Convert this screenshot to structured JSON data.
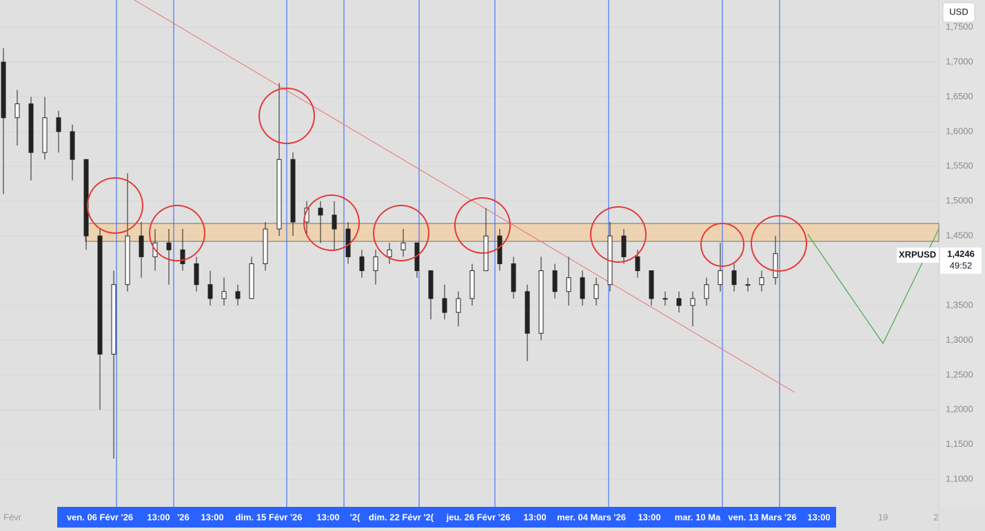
{
  "chart_data": {
    "type": "candlestick",
    "symbol": "XRPUSD",
    "currency": "USD",
    "last_price": {
      "value": 1.4246,
      "label": "1,4246"
    },
    "countdown": "49:52",
    "open": [
      1.7,
      1.62,
      1.64,
      1.57,
      1.62,
      1.6,
      1.56,
      1.45,
      1.28,
      1.38,
      1.45,
      1.42,
      1.44,
      1.43,
      1.41,
      1.38,
      1.36,
      1.37,
      1.36,
      1.41,
      1.46,
      1.56,
      1.47,
      1.49,
      1.48,
      1.46,
      1.42,
      1.4,
      1.42,
      1.43,
      1.44,
      1.4,
      1.36,
      1.34,
      1.36,
      1.4,
      1.45,
      1.41,
      1.37,
      1.31,
      1.4,
      1.37,
      1.39,
      1.36,
      1.38,
      1.45,
      1.42,
      1.4,
      1.36,
      1.36,
      1.35,
      1.36,
      1.38,
      1.4,
      1.38,
      1.38,
      1.39
    ],
    "high": [
      1.72,
      1.66,
      1.65,
      1.65,
      1.63,
      1.61,
      1.56,
      1.46,
      1.4,
      1.54,
      1.47,
      1.46,
      1.46,
      1.46,
      1.42,
      1.4,
      1.39,
      1.38,
      1.42,
      1.47,
      1.67,
      1.57,
      1.5,
      1.5,
      1.5,
      1.47,
      1.43,
      1.43,
      1.44,
      1.46,
      1.44,
      1.4,
      1.38,
      1.37,
      1.41,
      1.49,
      1.46,
      1.42,
      1.38,
      1.42,
      1.41,
      1.42,
      1.4,
      1.39,
      1.47,
      1.46,
      1.43,
      1.4,
      1.37,
      1.37,
      1.37,
      1.39,
      1.44,
      1.41,
      1.39,
      1.4,
      1.45
    ],
    "low": [
      1.51,
      1.58,
      1.53,
      1.56,
      1.57,
      1.53,
      1.43,
      1.2,
      1.13,
      1.37,
      1.39,
      1.4,
      1.38,
      1.4,
      1.37,
      1.35,
      1.35,
      1.35,
      1.36,
      1.4,
      1.45,
      1.45,
      1.45,
      1.44,
      1.43,
      1.41,
      1.39,
      1.38,
      1.41,
      1.42,
      1.39,
      1.33,
      1.33,
      1.32,
      1.35,
      1.4,
      1.4,
      1.36,
      1.27,
      1.3,
      1.36,
      1.35,
      1.35,
      1.35,
      1.37,
      1.41,
      1.39,
      1.35,
      1.35,
      1.34,
      1.32,
      1.35,
      1.37,
      1.37,
      1.37,
      1.37,
      1.38
    ],
    "close": [
      1.62,
      1.64,
      1.57,
      1.62,
      1.6,
      1.56,
      1.45,
      1.28,
      1.38,
      1.45,
      1.42,
      1.44,
      1.43,
      1.41,
      1.38,
      1.36,
      1.37,
      1.36,
      1.41,
      1.46,
      1.56,
      1.47,
      1.49,
      1.48,
      1.46,
      1.42,
      1.4,
      1.42,
      1.43,
      1.44,
      1.4,
      1.36,
      1.34,
      1.36,
      1.4,
      1.45,
      1.41,
      1.37,
      1.31,
      1.4,
      1.37,
      1.39,
      1.36,
      1.38,
      1.45,
      1.42,
      1.4,
      1.36,
      1.36,
      1.35,
      1.36,
      1.38,
      1.4,
      1.38,
      1.38,
      1.39,
      1.4246
    ],
    "ylim": [
      1.0604,
      1.7893
    ],
    "yticks": [
      {
        "value": 1.75,
        "label": "1,7500"
      },
      {
        "value": 1.7,
        "label": "1,7000"
      },
      {
        "value": 1.65,
        "label": "1,6500"
      },
      {
        "value": 1.6,
        "label": "1,6000"
      },
      {
        "value": 1.55,
        "label": "1,5500"
      },
      {
        "value": 1.5,
        "label": "1,5000"
      },
      {
        "value": 1.45,
        "label": "1,4500"
      },
      {
        "value": 1.35,
        "label": "1,3500"
      },
      {
        "value": 1.3,
        "label": "1,3000"
      },
      {
        "value": 1.25,
        "label": "1,2500"
      },
      {
        "value": 1.2,
        "label": "1,2000"
      },
      {
        "value": 1.15,
        "label": "1,1500"
      },
      {
        "value": 1.1,
        "label": "1,1000"
      }
    ],
    "x_labels": [
      "Févr",
      "ven. 06 Févr '26",
      "13:00",
      "'26",
      "13:00",
      "dim. 15 Févr '26",
      "13:00",
      "'2(",
      "dim. 22 Févr '2(",
      "jeu. 26 Févr '26",
      "13:00",
      "mer. 04 Mars '26",
      "13:00",
      "mar. 10 Ma",
      "ven. 13 Mars '26",
      "13:00",
      "19",
      "2"
    ]
  }
}
